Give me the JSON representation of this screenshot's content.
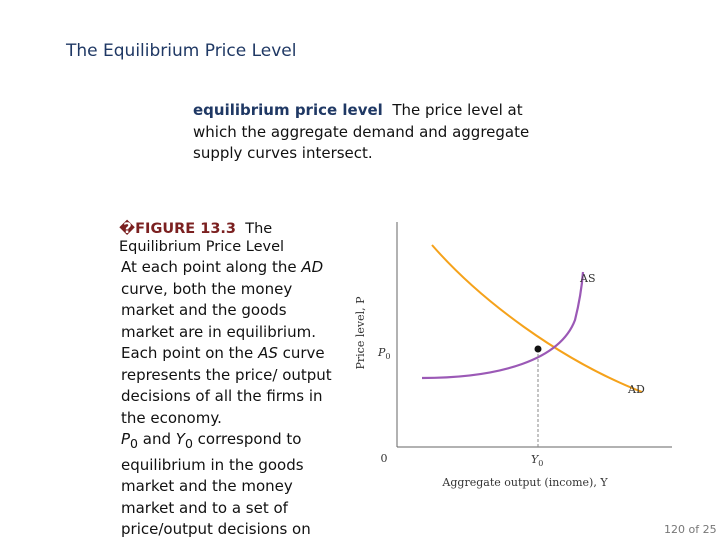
{
  "header": {
    "title": "The Equilibrium Price Level"
  },
  "definition": {
    "term": "equilibrium price level",
    "text": "The price level at which the aggregate demand and aggregate supply curves intersect."
  },
  "figure": {
    "marker": "�",
    "label": "FIGURE 13.3",
    "title": "The Equilibrium Price Level",
    "body": [
      "At each point along the ",
      "AD",
      " curve, both the money market and the goods market are in equilibrium. Each point on the ",
      "AS",
      " curve represents the price/ output decisions of all the firms in the economy."
    ],
    "body2": [
      "P",
      "0",
      " and ",
      "Y",
      "0",
      " correspond to equilibrium in the goods market and the money market and to a set of price/output decisions on"
    ]
  },
  "diagram": {
    "y_axis_label": "Price level, P",
    "x_axis_label": "Aggregate output (income), Y",
    "origin": "0",
    "p0": [
      "P",
      "0"
    ],
    "y0": [
      "Y",
      "0"
    ],
    "as_label": "AS",
    "ad_label": "AD"
  },
  "footer": {
    "page": "120 of 25"
  }
}
